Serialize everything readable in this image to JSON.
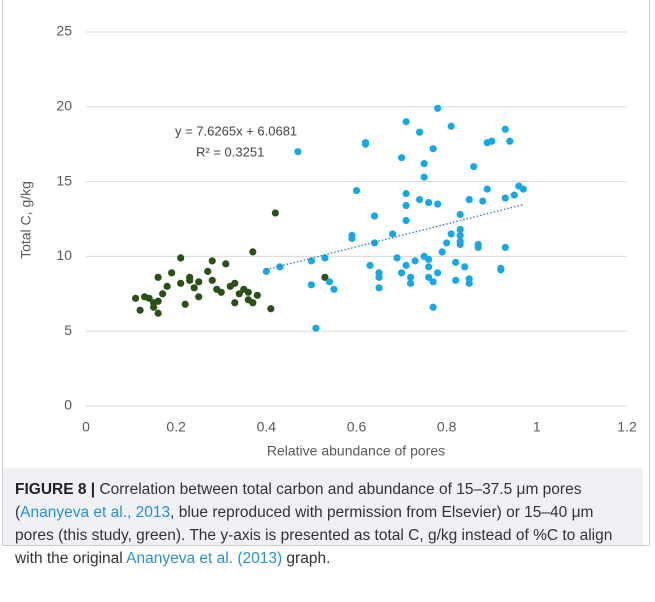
{
  "chart_data": {
    "type": "scatter",
    "xlabel": "Relative abundance of pores",
    "ylabel": "Total C, g/kg",
    "xlim": [
      0,
      1.2
    ],
    "xticks": [
      0,
      0.2,
      0.4,
      0.6,
      0.8,
      1,
      1.2
    ],
    "ylim": [
      0,
      25
    ],
    "yticks": [
      0,
      5,
      10,
      15,
      20,
      25
    ],
    "grid": true,
    "series": [
      {
        "color": "#2a5218",
        "x": [
          0.11,
          0.12,
          0.13,
          0.14,
          0.15,
          0.15,
          0.16,
          0.16,
          0.16,
          0.17,
          0.18,
          0.19,
          0.21,
          0.21,
          0.23,
          0.23,
          0.24,
          0.25,
          0.25,
          0.22,
          0.27,
          0.28,
          0.28,
          0.29,
          0.3,
          0.31,
          0.32,
          0.33,
          0.34,
          0.35,
          0.36,
          0.33,
          0.36,
          0.37,
          0.38,
          0.37,
          0.41,
          0.42,
          0.53
        ],
        "values": [
          7.2,
          6.4,
          7.3,
          7.2,
          6.9,
          6.6,
          6.2,
          7.0,
          8.6,
          7.5,
          8.0,
          8.9,
          9.9,
          8.2,
          8.6,
          8.4,
          7.9,
          7.3,
          8.3,
          6.8,
          9.0,
          9.7,
          8.4,
          7.8,
          7.6,
          9.5,
          8.0,
          8.2,
          7.5,
          7.8,
          7.6,
          6.9,
          7.1,
          6.9,
          7.4,
          10.3,
          6.5,
          12.9,
          8.6
        ]
      },
      {
        "color": "#1aa8e2",
        "x": [
          0.4,
          0.43,
          0.47,
          0.5,
          0.5,
          0.51,
          0.53,
          0.54,
          0.55,
          0.59,
          0.59,
          0.6,
          0.62,
          0.62,
          0.63,
          0.64,
          0.64,
          0.65,
          0.65,
          0.65,
          0.68,
          0.69,
          0.7,
          0.7,
          0.71,
          0.71,
          0.71,
          0.71,
          0.71,
          0.72,
          0.72,
          0.73,
          0.74,
          0.74,
          0.75,
          0.75,
          0.75,
          0.76,
          0.76,
          0.76,
          0.76,
          0.77,
          0.77,
          0.77,
          0.78,
          0.78,
          0.78,
          0.79,
          0.8,
          0.81,
          0.81,
          0.82,
          0.82,
          0.83,
          0.83,
          0.83,
          0.83,
          0.83,
          0.84,
          0.85,
          0.85,
          0.85,
          0.86,
          0.87,
          0.87,
          0.88,
          0.89,
          0.89,
          0.9,
          0.92,
          0.92,
          0.93,
          0.93,
          0.93,
          0.94,
          0.95,
          0.96,
          0.97
        ],
        "values": [
          9.0,
          9.3,
          17.0,
          9.7,
          8.1,
          5.2,
          9.9,
          8.3,
          7.8,
          11.2,
          11.4,
          14.4,
          17.6,
          17.5,
          9.4,
          12.7,
          10.9,
          8.9,
          8.6,
          7.9,
          11.5,
          9.9,
          16.6,
          8.9,
          19.0,
          14.2,
          13.4,
          12.4,
          9.4,
          8.6,
          8.2,
          9.7,
          13.8,
          18.3,
          15.3,
          16.2,
          10.0,
          8.6,
          9.3,
          9.8,
          13.6,
          17.2,
          6.6,
          8.3,
          19.9,
          13.5,
          8.9,
          10.3,
          10.9,
          11.5,
          18.7,
          9.6,
          8.4,
          10.8,
          11.0,
          11.4,
          11.8,
          12.8,
          9.3,
          13.8,
          8.5,
          8.2,
          16.0,
          10.8,
          10.6,
          13.7,
          14.5,
          17.6,
          17.7,
          9.1,
          9.2,
          10.6,
          18.5,
          13.9,
          17.7,
          14.1,
          14.7,
          14.5
        ]
      }
    ],
    "trendline": {
      "slope": 7.6265,
      "intercept": 6.0681,
      "color": "#2e75b6"
    },
    "annotations": [
      "y = 7.6265x + 6.0681",
      "R² = 0.3251"
    ]
  },
  "caption": {
    "label": "FIGURE 8 |",
    "segments": [
      "Correlation between total carbon and abundance of 15–37.5 μm pores (",
      "Ananyeva et al., 2013",
      ", blue reproduced with permission from Elsevier) or 15–40 μm pores (this study, green). The y-axis is presented as total C, g/kg instead of %C to align with the original ",
      "Ananyeva et al. (2013)",
      " graph."
    ]
  }
}
